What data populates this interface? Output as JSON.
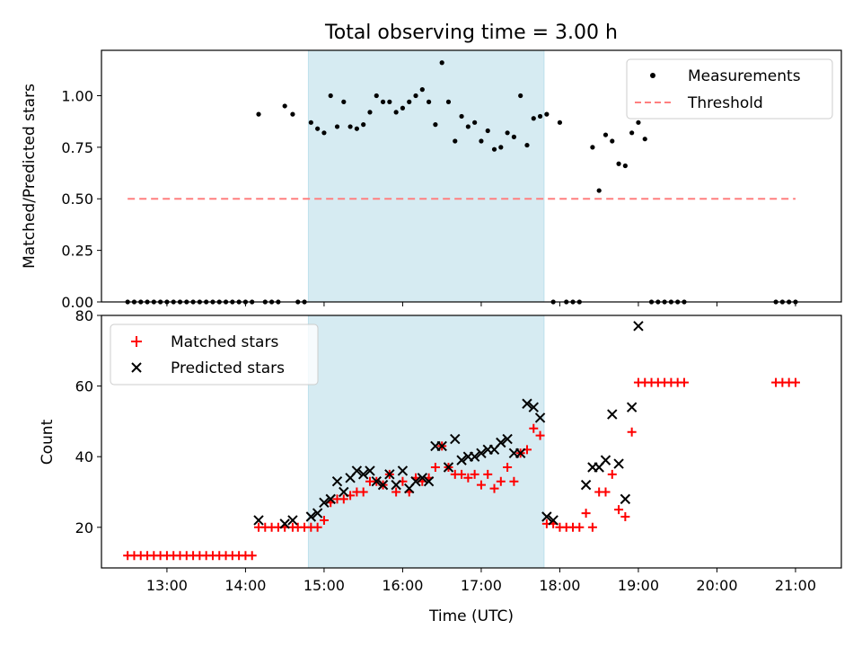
{
  "chart_data": [
    {
      "type": "scatter",
      "title": "Total observing time = 3.00 h",
      "xlabel": "",
      "ylabel": "Matched/Predicted stars",
      "xlim": [
        "12:10",
        "21:35"
      ],
      "ylim": [
        0,
        1.22
      ],
      "yticks": [
        "0.00",
        "0.25",
        "0.50",
        "0.75",
        "1.00"
      ],
      "shaded_interval": [
        "14:48",
        "17:48"
      ],
      "grid": false,
      "legend_position": "upper right",
      "series": [
        {
          "name": "Measurements",
          "marker": "dot",
          "color": "#000000",
          "points": [
            [
              "12:30",
              0
            ],
            [
              "12:35",
              0
            ],
            [
              "12:40",
              0
            ],
            [
              "12:45",
              0
            ],
            [
              "12:50",
              0
            ],
            [
              "12:55",
              0
            ],
            [
              "13:00",
              0
            ],
            [
              "13:05",
              0
            ],
            [
              "13:10",
              0
            ],
            [
              "13:15",
              0
            ],
            [
              "13:20",
              0
            ],
            [
              "13:25",
              0
            ],
            [
              "13:30",
              0
            ],
            [
              "13:35",
              0
            ],
            [
              "13:40",
              0
            ],
            [
              "13:45",
              0
            ],
            [
              "13:50",
              0
            ],
            [
              "13:55",
              0
            ],
            [
              "14:00",
              0
            ],
            [
              "14:05",
              0
            ],
            [
              "14:10",
              0.91
            ],
            [
              "14:15",
              0
            ],
            [
              "14:20",
              0
            ],
            [
              "14:25",
              0
            ],
            [
              "14:30",
              0.95
            ],
            [
              "14:36",
              0.91
            ],
            [
              "14:40",
              0
            ],
            [
              "14:45",
              0
            ],
            [
              "14:50",
              0.87
            ],
            [
              "14:55",
              0.84
            ],
            [
              "15:00",
              0.82
            ],
            [
              "15:05",
              1.0
            ],
            [
              "15:10",
              0.85
            ],
            [
              "15:15",
              0.97
            ],
            [
              "15:20",
              0.85
            ],
            [
              "15:25",
              0.84
            ],
            [
              "15:30",
              0.86
            ],
            [
              "15:35",
              0.92
            ],
            [
              "15:40",
              1.0
            ],
            [
              "15:45",
              0.97
            ],
            [
              "15:50",
              0.97
            ],
            [
              "15:55",
              0.92
            ],
            [
              "16:00",
              0.94
            ],
            [
              "16:05",
              0.97
            ],
            [
              "16:10",
              1.0
            ],
            [
              "16:15",
              1.03
            ],
            [
              "16:20",
              0.97
            ],
            [
              "16:25",
              0.86
            ],
            [
              "16:30",
              1.16
            ],
            [
              "16:35",
              0.97
            ],
            [
              "16:40",
              0.78
            ],
            [
              "16:45",
              0.9
            ],
            [
              "16:50",
              0.85
            ],
            [
              "16:55",
              0.87
            ],
            [
              "17:00",
              0.78
            ],
            [
              "17:05",
              0.83
            ],
            [
              "17:10",
              0.74
            ],
            [
              "17:15",
              0.75
            ],
            [
              "17:20",
              0.82
            ],
            [
              "17:25",
              0.8
            ],
            [
              "17:30",
              1.0
            ],
            [
              "17:35",
              0.76
            ],
            [
              "17:40",
              0.89
            ],
            [
              "17:45",
              0.9
            ],
            [
              "17:50",
              0.91
            ],
            [
              "17:55",
              0
            ],
            [
              "18:00",
              0.87
            ],
            [
              "18:05",
              0
            ],
            [
              "18:10",
              0
            ],
            [
              "18:15",
              0
            ],
            [
              "18:25",
              0.75
            ],
            [
              "18:30",
              0.54
            ],
            [
              "18:35",
              0.81
            ],
            [
              "18:40",
              0.78
            ],
            [
              "18:45",
              0.67
            ],
            [
              "18:50",
              0.66
            ],
            [
              "18:55",
              0.82
            ],
            [
              "19:00",
              0.87
            ],
            [
              "19:05",
              0.79
            ],
            [
              "19:10",
              0
            ],
            [
              "19:15",
              0
            ],
            [
              "19:20",
              0
            ],
            [
              "19:25",
              0
            ],
            [
              "19:30",
              0
            ],
            [
              "19:35",
              0
            ],
            [
              "20:45",
              0
            ],
            [
              "20:50",
              0
            ],
            [
              "20:55",
              0
            ],
            [
              "21:00",
              0
            ]
          ]
        },
        {
          "name": "Threshold",
          "style": "dashed",
          "color": "#ff7f7f",
          "points": [
            [
              "12:30",
              0.5
            ],
            [
              "21:00",
              0.5
            ]
          ]
        }
      ]
    },
    {
      "type": "scatter",
      "title": "",
      "xlabel": "Time (UTC)",
      "ylabel": "Count",
      "xlim": [
        "12:10",
        "21:35"
      ],
      "ylim": [
        8.5,
        80
      ],
      "yticks": [
        "20",
        "40",
        "60",
        "80"
      ],
      "xticks": [
        "13:00",
        "14:00",
        "15:00",
        "16:00",
        "17:00",
        "18:00",
        "19:00",
        "20:00",
        "21:00"
      ],
      "shaded_interval": [
        "14:48",
        "17:48"
      ],
      "grid": false,
      "legend_position": "upper left",
      "series": [
        {
          "name": "Matched stars",
          "marker": "plus",
          "color": "#ff0000",
          "points": [
            [
              "12:30",
              12
            ],
            [
              "12:35",
              12
            ],
            [
              "12:40",
              12
            ],
            [
              "12:45",
              12
            ],
            [
              "12:50",
              12
            ],
            [
              "12:55",
              12
            ],
            [
              "13:00",
              12
            ],
            [
              "13:05",
              12
            ],
            [
              "13:10",
              12
            ],
            [
              "13:15",
              12
            ],
            [
              "13:20",
              12
            ],
            [
              "13:25",
              12
            ],
            [
              "13:30",
              12
            ],
            [
              "13:35",
              12
            ],
            [
              "13:40",
              12
            ],
            [
              "13:45",
              12
            ],
            [
              "13:50",
              12
            ],
            [
              "13:55",
              12
            ],
            [
              "14:00",
              12
            ],
            [
              "14:05",
              12
            ],
            [
              "14:10",
              20
            ],
            [
              "14:15",
              20
            ],
            [
              "14:20",
              20
            ],
            [
              "14:25",
              20
            ],
            [
              "14:30",
              20
            ],
            [
              "14:36",
              20
            ],
            [
              "14:40",
              20
            ],
            [
              "14:45",
              20
            ],
            [
              "14:50",
              20
            ],
            [
              "14:55",
              20
            ],
            [
              "15:00",
              22
            ],
            [
              "15:05",
              27
            ],
            [
              "15:10",
              28
            ],
            [
              "15:15",
              28
            ],
            [
              "15:20",
              29
            ],
            [
              "15:25",
              30
            ],
            [
              "15:30",
              30
            ],
            [
              "15:35",
              33
            ],
            [
              "15:40",
              33
            ],
            [
              "15:45",
              32
            ],
            [
              "15:50",
              35
            ],
            [
              "15:55",
              30
            ],
            [
              "16:00",
              33
            ],
            [
              "16:05",
              30
            ],
            [
              "16:10",
              34
            ],
            [
              "16:15",
              33
            ],
            [
              "16:20",
              34
            ],
            [
              "16:25",
              37
            ],
            [
              "16:30",
              43
            ],
            [
              "16:35",
              37
            ],
            [
              "16:40",
              35
            ],
            [
              "16:45",
              35
            ],
            [
              "16:50",
              34
            ],
            [
              "16:55",
              35
            ],
            [
              "17:00",
              32
            ],
            [
              "17:05",
              35
            ],
            [
              "17:10",
              31
            ],
            [
              "17:15",
              33
            ],
            [
              "17:20",
              37
            ],
            [
              "17:25",
              33
            ],
            [
              "17:30",
              41
            ],
            [
              "17:35",
              42
            ],
            [
              "17:40",
              48
            ],
            [
              "17:45",
              46
            ],
            [
              "17:50",
              21
            ],
            [
              "17:55",
              21
            ],
            [
              "18:00",
              20
            ],
            [
              "18:05",
              20
            ],
            [
              "18:10",
              20
            ],
            [
              "18:15",
              20
            ],
            [
              "18:20",
              24
            ],
            [
              "18:25",
              20
            ],
            [
              "18:30",
              30
            ],
            [
              "18:35",
              30
            ],
            [
              "18:40",
              35
            ],
            [
              "18:45",
              25
            ],
            [
              "18:50",
              23
            ],
            [
              "18:55",
              47
            ],
            [
              "19:00",
              61
            ],
            [
              "19:05",
              61
            ],
            [
              "19:10",
              61
            ],
            [
              "19:15",
              61
            ],
            [
              "19:20",
              61
            ],
            [
              "19:25",
              61
            ],
            [
              "19:30",
              61
            ],
            [
              "19:35",
              61
            ],
            [
              "20:45",
              61
            ],
            [
              "20:50",
              61
            ],
            [
              "20:55",
              61
            ],
            [
              "21:00",
              61
            ]
          ]
        },
        {
          "name": "Predicted stars",
          "marker": "x",
          "color": "#000000",
          "points": [
            [
              "14:10",
              22
            ],
            [
              "14:30",
              21
            ],
            [
              "14:36",
              22
            ],
            [
              "14:50",
              23
            ],
            [
              "14:55",
              24
            ],
            [
              "15:00",
              27
            ],
            [
              "15:05",
              28
            ],
            [
              "15:10",
              33
            ],
            [
              "15:15",
              30
            ],
            [
              "15:20",
              34
            ],
            [
              "15:25",
              36
            ],
            [
              "15:30",
              35
            ],
            [
              "15:35",
              36
            ],
            [
              "15:40",
              33
            ],
            [
              "15:45",
              32
            ],
            [
              "15:50",
              35
            ],
            [
              "15:55",
              32
            ],
            [
              "16:00",
              36
            ],
            [
              "16:05",
              31
            ],
            [
              "16:10",
              33
            ],
            [
              "16:15",
              34
            ],
            [
              "16:20",
              33
            ],
            [
              "16:25",
              43
            ],
            [
              "16:30",
              43
            ],
            [
              "16:35",
              37
            ],
            [
              "16:40",
              45
            ],
            [
              "16:45",
              39
            ],
            [
              "16:50",
              40
            ],
            [
              "16:55",
              40
            ],
            [
              "17:00",
              41
            ],
            [
              "17:05",
              42
            ],
            [
              "17:10",
              42
            ],
            [
              "17:15",
              44
            ],
            [
              "17:20",
              45
            ],
            [
              "17:25",
              41
            ],
            [
              "17:30",
              41
            ],
            [
              "17:35",
              55
            ],
            [
              "17:40",
              54
            ],
            [
              "17:45",
              51
            ],
            [
              "17:50",
              23
            ],
            [
              "17:55",
              22
            ],
            [
              "18:20",
              32
            ],
            [
              "18:25",
              37
            ],
            [
              "18:30",
              37
            ],
            [
              "18:35",
              39
            ],
            [
              "18:40",
              52
            ],
            [
              "18:45",
              38
            ],
            [
              "18:50",
              28
            ],
            [
              "18:55",
              54
            ],
            [
              "19:00",
              77
            ]
          ]
        }
      ]
    }
  ]
}
